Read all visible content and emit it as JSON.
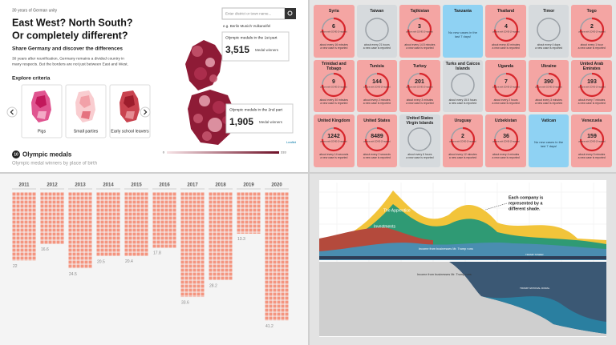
{
  "germany": {
    "kicker": "30 years of German unity",
    "title_lines": [
      "East West? North South?",
      "Or completely different?"
    ],
    "subtitle": "Share Germany and discover the differences",
    "intro_lines": [
      "30 years after reunification, Germany remains a divided country in",
      "many respects. But the borders are not just between East and West."
    ],
    "criteria_heading": "Explore criteria",
    "criteria": [
      "Pigs",
      "Small parties",
      "Early school leavers"
    ],
    "search_placeholder": "Enter district or town name...",
    "examples": "e.g. Berlin Munich Vulkaneifel",
    "tooltips": [
      {
        "heading": "Olympic medals in the 1st part",
        "value": "3,515",
        "unit": "Medal winners"
      },
      {
        "heading": "Olympic medals in the 2nd part",
        "value": "1,905",
        "unit": "Medal winners"
      }
    ],
    "legend": {
      "min": 0,
      "max": 333
    },
    "attribution": "Leaflet",
    "section": {
      "number": 10,
      "title": "Olympic medals",
      "subtitle": "Olympic medal winners by place of birth"
    }
  },
  "covid": {
    "count_caption": "persons with COVID-19 reported",
    "interval_suffix": "a new case is reported",
    "no_cases": "No new cases in the last 7 days!",
    "cards": [
      {
        "name": "Syria",
        "count": 6,
        "interval": "about every 16 minutes",
        "color": "#f4a5a3"
      },
      {
        "name": "Taiwan",
        "interval": "about every 21 hours",
        "color": "#d6dadd"
      },
      {
        "name": "Tajikistan",
        "count": 3,
        "interval": "about every 14.5 minutes",
        "color": "#f4a5a3"
      },
      {
        "name": "Tanzania",
        "color": "#8fd2f3"
      },
      {
        "name": "Thailand",
        "count": 4,
        "interval": "about every 40 minutes",
        "color": "#f4a5a3"
      },
      {
        "name": "Timor",
        "interval": "about every 4 days",
        "color": "#d6dadd"
      },
      {
        "name": "Togo",
        "count": 2,
        "interval": "about every 1 hour",
        "color": "#f4a5a3"
      },
      {
        "name": "Trinidad and Tobago",
        "count": 9,
        "interval": "about every 30 minutes",
        "color": "#f4a5a3"
      },
      {
        "name": "Tunisia",
        "count": 144,
        "interval": "about every 2 minutes",
        "color": "#f4a5a3"
      },
      {
        "name": "Turkey",
        "count": 201,
        "interval": "about every 3 minutes",
        "color": "#f4a5a3"
      },
      {
        "name": "Turks and Caicos Islands",
        "interval": "about every 15.5 hours",
        "color": "#d6dadd"
      },
      {
        "name": "Uganda",
        "count": 7,
        "interval": "about every 2 hours",
        "color": "#f4a5a3"
      },
      {
        "name": "Ukraine",
        "count": 390,
        "interval": "about every 3 minutes",
        "color": "#f4a5a3"
      },
      {
        "name": "United Arab Emirates",
        "count": 193,
        "interval": "about every 7 minutes",
        "color": "#f4a5a3"
      },
      {
        "name": "United Kingdom",
        "count": 1242,
        "interval": "about every 14 seconds",
        "color": "#f4a5a3"
      },
      {
        "name": "United States",
        "count": 8489,
        "interval": "about every 2 seconds",
        "color": "#f4a5a3"
      },
      {
        "name": "United States Virgin Islands",
        "interval": "about every 6 hours",
        "color": "#d6dadd"
      },
      {
        "name": "Uruguay",
        "count": 2,
        "interval": "about every 12 minutes",
        "color": "#f4a5a3"
      },
      {
        "name": "Uzbekistan",
        "count": 36,
        "interval": "about every 4 minutes",
        "color": "#f4a5a3"
      },
      {
        "name": "Vatican",
        "color": "#8fd2f3"
      },
      {
        "name": "Venezuela",
        "count": 159,
        "interval": "about every 9 minutes",
        "color": "#f4a5a3"
      }
    ]
  },
  "waffle": {
    "color": "#f4957f",
    "columns": [
      {
        "year": 2011,
        "value": 22
      },
      {
        "year": 2012,
        "value": 16.6
      },
      {
        "year": 2013,
        "value": 24.5
      },
      {
        "year": 2014,
        "value": 20.5
      },
      {
        "year": 2015,
        "value": 20.4
      },
      {
        "year": 2016,
        "value": 17.8
      },
      {
        "year": 2017,
        "value": 33.6
      },
      {
        "year": 2018,
        "value": 28.2
      },
      {
        "year": 2019,
        "value": 13.3
      },
      {
        "year": 2020,
        "value": 41.2
      }
    ]
  },
  "stream": {
    "annotation_lines": [
      "Each company is",
      "represented by a",
      "different shade."
    ],
    "labels": [
      "The Apprentice",
      "Investments",
      "Income from businesses Mr. Trump runs",
      "TRUMP TOWER",
      "Income from businesses Mr. Trump runs",
      "TRUMP NATIONAL DORAL"
    ]
  }
}
